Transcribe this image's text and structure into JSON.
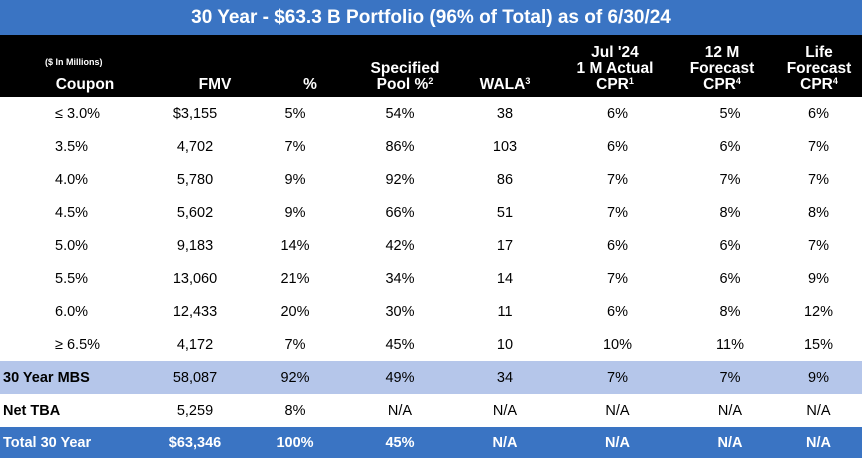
{
  "title": "30 Year - $63.3 B Portfolio (96% of Total) as of 6/30/24",
  "header": {
    "units": "($ In Millions)",
    "coupon": "Coupon",
    "fmv": "FMV",
    "pct": "%",
    "spec_line1": "Specified",
    "spec_line2": "Pool %",
    "spec_sup": "2",
    "wala": "WALA",
    "wala_sup": "3",
    "jul_line1": "Jul '24",
    "jul_line2": "1 M Actual",
    "jul_line3": "CPR",
    "jul_sup": "1",
    "m12_line1": "12 M",
    "m12_line2": "Forecast",
    "m12_line3": "CPR",
    "m12_sup": "4",
    "life_line1": "Life",
    "life_line2": "Forecast",
    "life_line3": "CPR",
    "life_sup": "4"
  },
  "rows": [
    {
      "coupon": "≤ 3.0%",
      "fmv": "$3,155",
      "pct": "5%",
      "spec": "54%",
      "wala": "38",
      "jul": "6%",
      "m12": "5%",
      "life": "6%"
    },
    {
      "coupon": "3.5%",
      "fmv": "4,702",
      "pct": "7%",
      "spec": "86%",
      "wala": "103",
      "jul": "6%",
      "m12": "6%",
      "life": "7%"
    },
    {
      "coupon": "4.0%",
      "fmv": "5,780",
      "pct": "9%",
      "spec": "92%",
      "wala": "86",
      "jul": "7%",
      "m12": "7%",
      "life": "7%"
    },
    {
      "coupon": "4.5%",
      "fmv": "5,602",
      "pct": "9%",
      "spec": "66%",
      "wala": "51",
      "jul": "7%",
      "m12": "8%",
      "life": "8%"
    },
    {
      "coupon": "5.0%",
      "fmv": "9,183",
      "pct": "14%",
      "spec": "42%",
      "wala": "17",
      "jul": "6%",
      "m12": "6%",
      "life": "7%"
    },
    {
      "coupon": "5.5%",
      "fmv": "13,060",
      "pct": "21%",
      "spec": "34%",
      "wala": "14",
      "jul": "7%",
      "m12": "6%",
      "life": "9%"
    },
    {
      "coupon": "6.0%",
      "fmv": "12,433",
      "pct": "20%",
      "spec": "30%",
      "wala": "11",
      "jul": "6%",
      "m12": "8%",
      "life": "12%"
    },
    {
      "coupon": "≥ 6.5%",
      "fmv": "4,172",
      "pct": "7%",
      "spec": "45%",
      "wala": "10",
      "jul": "10%",
      "m12": "11%",
      "life": "15%"
    }
  ],
  "mbs": {
    "coupon": "30 Year MBS",
    "fmv": "58,087",
    "pct": "92%",
    "spec": "49%",
    "wala": "34",
    "jul": "7%",
    "m12": "7%",
    "life": "9%"
  },
  "tba": {
    "coupon": "Net TBA",
    "fmv": "5,259",
    "pct": "8%",
    "spec": "N/A",
    "wala": "N/A",
    "jul": "N/A",
    "m12": "N/A",
    "life": "N/A"
  },
  "total": {
    "coupon": "Total 30 Year",
    "fmv": "$63,346",
    "pct": "100%",
    "spec": "45%",
    "wala": "N/A",
    "jul": "N/A",
    "m12": "N/A",
    "life": "N/A"
  }
}
